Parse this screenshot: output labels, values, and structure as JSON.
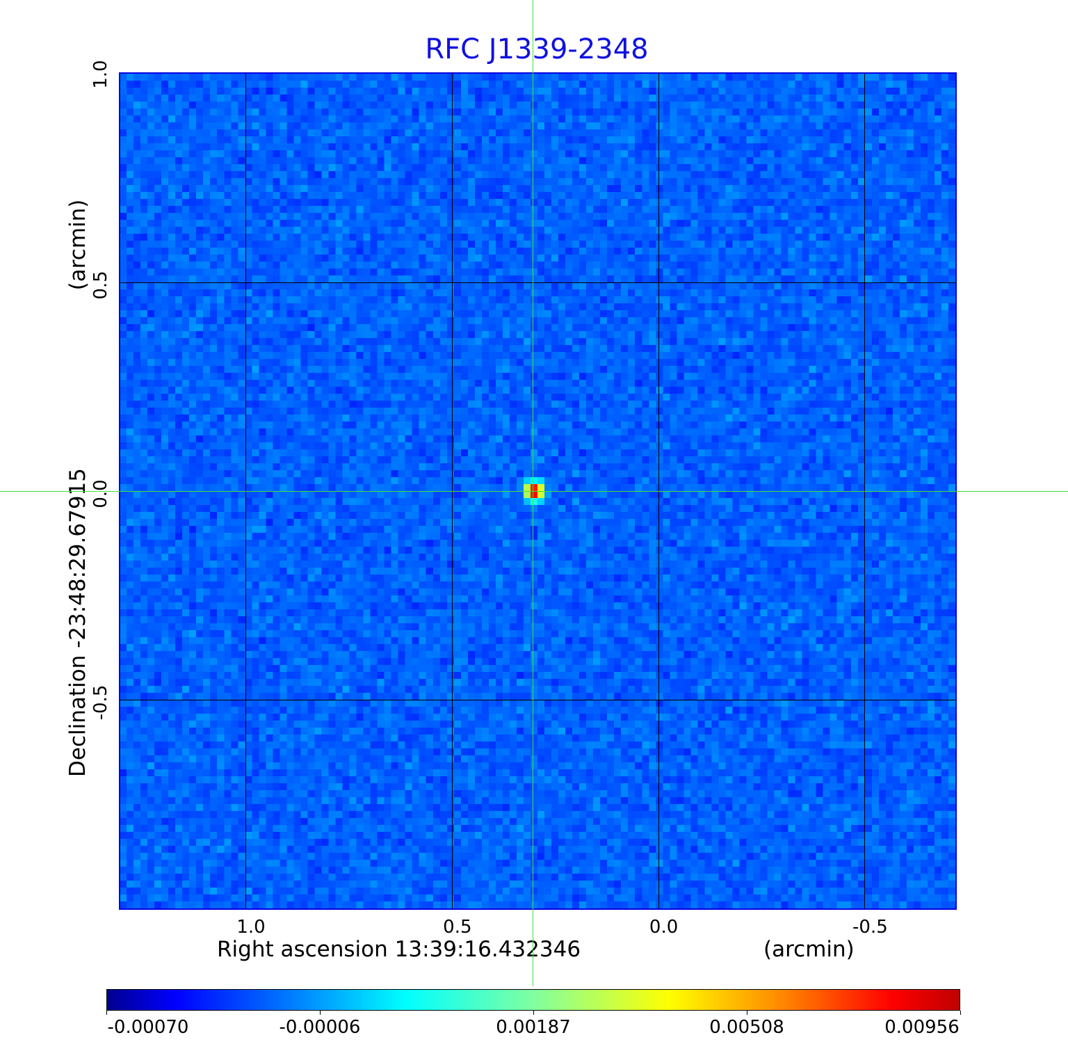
{
  "chart_data": {
    "type": "heatmap",
    "title": "RFC J1339-2348",
    "xlabel": "Right ascension  13:39:16.432346",
    "xunit": "(arcmin)",
    "ylabel": "Declination  -23:48:29.67915",
    "yunit": "(arcmin)",
    "xlim": [
      1.305,
      -0.72
    ],
    "ylim": [
      -1.0,
      1.0
    ],
    "xticks": [
      "1.0",
      "0.5",
      "0.0",
      "-0.5"
    ],
    "xtick_values": [
      1.0,
      0.5,
      0.0,
      -0.5
    ],
    "yticks": [
      "1.0",
      "0.5",
      "0.0",
      "-0.5"
    ],
    "ytick_values": [
      1.0,
      0.5,
      0.0,
      -0.5
    ],
    "grid": true,
    "grid_color": "#000000",
    "colormap": "jet",
    "colorbar": {
      "ticks": [
        "-0.00070",
        "-0.00006",
        "0.00187",
        "0.00508",
        "0.00956"
      ],
      "tick_values": [
        -0.0007,
        -6e-05,
        0.00187,
        0.00508,
        0.00956
      ],
      "placement": "bottom"
    },
    "source_peak": {
      "x": 0.3,
      "y": 0.0,
      "value": 0.00956
    },
    "crosshair": {
      "x": 0.305,
      "y": 0.0,
      "color": "#40e040"
    },
    "frame_color": "#0000e0",
    "title_color": "#1010e0"
  }
}
